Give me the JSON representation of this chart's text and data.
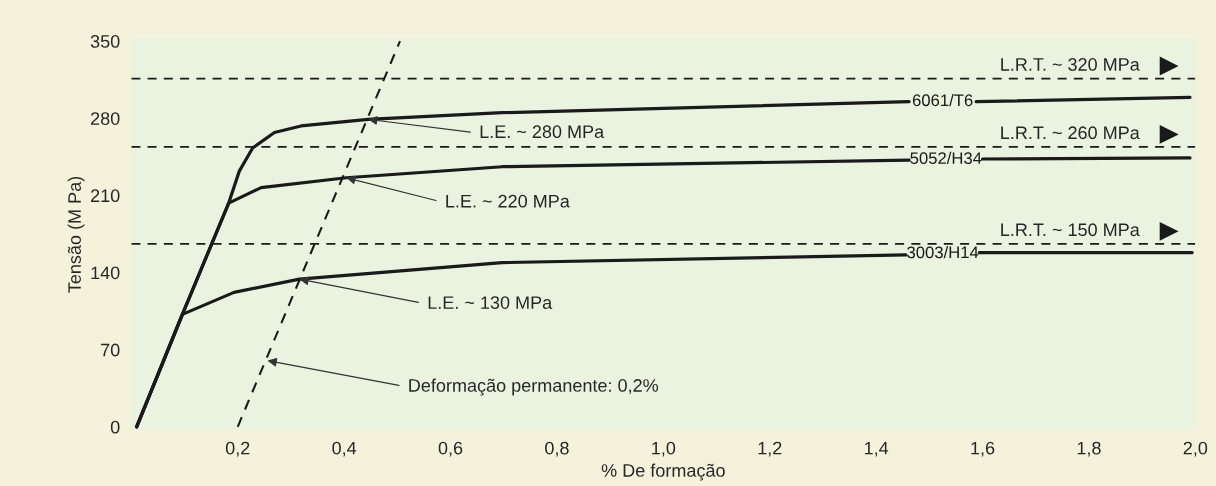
{
  "chart_data": {
    "type": "line",
    "xlabel": "% De formação",
    "ylabel": "Tensão (M Pa)",
    "xlim": [
      0,
      2.0
    ],
    "ylim": [
      -3,
      352
    ],
    "xticks": [
      {
        "value": 0.2,
        "label": "0,2"
      },
      {
        "value": 0.4,
        "label": "0,4"
      },
      {
        "value": 0.6,
        "label": "0,6"
      },
      {
        "value": 0.8,
        "label": "0,8"
      },
      {
        "value": 1.0,
        "label": "1,0"
      },
      {
        "value": 1.2,
        "label": "1,2"
      },
      {
        "value": 1.4,
        "label": "1,4"
      },
      {
        "value": 1.6,
        "label": "1,6"
      },
      {
        "value": 1.8,
        "label": "1,8"
      },
      {
        "value": 2.0,
        "label": "2,0"
      }
    ],
    "yticks": [
      0,
      70,
      140,
      210,
      280,
      350
    ],
    "grid": false,
    "legend": false,
    "marker": "none",
    "series": [
      {
        "name": "6061/T6",
        "color": "#1a1a1a",
        "line_style": "solid",
        "x": [
          0.01,
          0.096,
          0.183,
          0.203,
          0.228,
          0.269,
          0.319,
          0.445,
          0.697,
          1.462,
          1.525,
          1.588,
          1.99
        ],
        "values": [
          0,
          102,
          203,
          232,
          253,
          267,
          273,
          279,
          285,
          295,
          null,
          295,
          299
        ]
      },
      {
        "name": "5052/H34",
        "color": "#1a1a1a",
        "line_style": "solid",
        "x": [
          0.01,
          0.096,
          0.183,
          0.244,
          0.404,
          0.697,
          1.462,
          1.531,
          1.6,
          1.99
        ],
        "values": [
          0,
          102,
          203,
          217,
          226,
          236,
          242,
          null,
          243,
          244
        ]
      },
      {
        "name": "3003/H14",
        "color": "#1a1a1a",
        "line_style": "solid",
        "x": [
          0.01,
          0.096,
          0.193,
          0.316,
          0.697,
          1.456,
          1.525,
          1.594,
          1.994
        ],
        "values": [
          0,
          102,
          122,
          134,
          149,
          156,
          null,
          158,
          158
        ]
      },
      {
        "color": "#1a1a1a",
        "line_style": "dashed",
        "x": [
          0.2,
          0.505
        ],
        "values": [
          0,
          350
        ]
      }
    ],
    "ref_lines": [
      {
        "axis": "y",
        "value": 316,
        "label": "L.R.T. ~ 320 MPa",
        "line_style": "dashed",
        "color": "#1a1a1a"
      },
      {
        "axis": "y",
        "value": 254,
        "label": "L.R.T. ~ 260 MPa",
        "line_style": "dashed",
        "color": "#1a1a1a"
      },
      {
        "axis": "y",
        "value": 166,
        "label": "L.R.T. ~ 150 MPa",
        "line_style": "dashed",
        "color": "#1a1a1a"
      }
    ],
    "annotations": [
      {
        "text": "L.E. ~ 280 MPa",
        "x": 0.445,
        "y": 279
      },
      {
        "text": "L.E. ~ 220 MPa",
        "x": 0.404,
        "y": 226
      },
      {
        "text": "L.E. ~ 130 MPa",
        "x": 0.316,
        "y": 134
      },
      {
        "text": "Deformação permanente: 0,2%",
        "x": 0.256,
        "y": 60
      }
    ]
  }
}
